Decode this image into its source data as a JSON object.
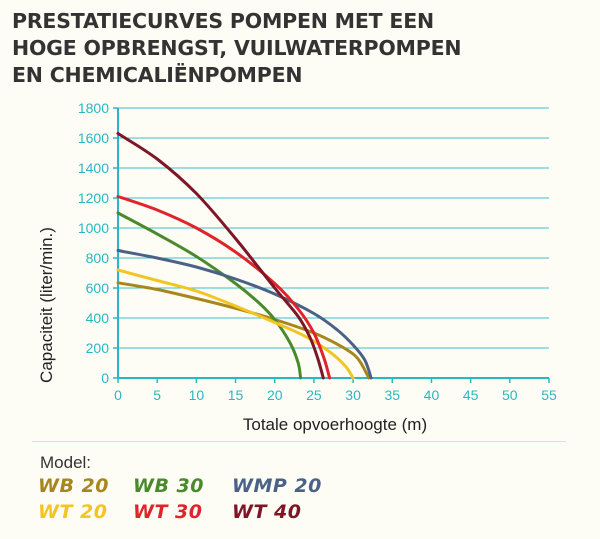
{
  "title_lines": [
    "PRESTATIECURVES POMPEN MET EEN",
    "HOGE OPBRENGST, VUILWATERPOMPEN",
    "EN CHEMICALIËNPOMPEN"
  ],
  "legend_title": "Model:",
  "chart_data": {
    "type": "line",
    "xlabel": "Totale opvoerhoogte (m)",
    "ylabel": "Capaciteit (liter/min.)",
    "xlim": [
      0,
      55
    ],
    "ylim": [
      0,
      1800
    ],
    "xticks": [
      "0",
      "5",
      "10",
      "15",
      "20",
      "25",
      "30",
      "35",
      "40",
      "45",
      "50",
      "55"
    ],
    "yticks": [
      "0",
      "200",
      "400",
      "600",
      "800",
      "1000",
      "1200",
      "1400",
      "1600",
      "1800"
    ],
    "grid": true,
    "legend_position": "bottom",
    "series": [
      {
        "name": "WB 20",
        "color": "#a8861e",
        "x": [
          0,
          5,
          10,
          15,
          20,
          25,
          28,
          30,
          31,
          32
        ],
        "y": [
          635,
          590,
          530,
          465,
          390,
          300,
          225,
          160,
          100,
          0
        ]
      },
      {
        "name": "WB 30",
        "color": "#4a8a2c",
        "x": [
          0,
          5,
          10,
          15,
          18,
          20,
          22,
          23,
          23.3
        ],
        "y": [
          1100,
          960,
          810,
          630,
          500,
          390,
          230,
          100,
          0
        ]
      },
      {
        "name": "WMP 20",
        "color": "#4a6188",
        "x": [
          0,
          5,
          10,
          15,
          20,
          25,
          28,
          30,
          31.5,
          32.3
        ],
        "y": [
          850,
          800,
          740,
          660,
          560,
          430,
          320,
          220,
          120,
          0
        ]
      },
      {
        "name": "WT 20",
        "color": "#f2c523",
        "x": [
          0,
          5,
          10,
          15,
          20,
          24,
          27,
          29,
          30
        ],
        "y": [
          720,
          650,
          580,
          480,
          370,
          275,
          175,
          80,
          0
        ]
      },
      {
        "name": "WT 30",
        "color": "#e0242c",
        "x": [
          0,
          5,
          10,
          15,
          20,
          23,
          25,
          26.3,
          27
        ],
        "y": [
          1210,
          1120,
          1000,
          840,
          630,
          460,
          300,
          130,
          0
        ]
      },
      {
        "name": "WT 40",
        "color": "#7d1626",
        "x": [
          0,
          5,
          10,
          15,
          20,
          23,
          24.5,
          25.5,
          26.2
        ],
        "y": [
          1630,
          1460,
          1230,
          930,
          600,
          410,
          270,
          130,
          0
        ]
      }
    ]
  }
}
